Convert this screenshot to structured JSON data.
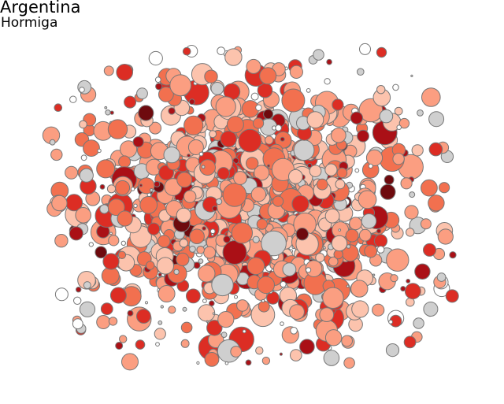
{
  "chart_data": {
    "type": "scatter",
    "subtype": "bubble-cloud",
    "title": "Argentina",
    "subtitle": "Hormiga",
    "xlabel": "",
    "ylabel": "",
    "axes_visible": false,
    "grid": false,
    "legend": "none",
    "color_scale": [
      "#ffffff",
      "#cfcfcf",
      "#fcc3ad",
      "#fb9e81",
      "#f2704f",
      "#dc2d24",
      "#aa1016",
      "#6e0a0e"
    ],
    "stroke_color": "#777777",
    "approx_point_count": 1400
  }
}
